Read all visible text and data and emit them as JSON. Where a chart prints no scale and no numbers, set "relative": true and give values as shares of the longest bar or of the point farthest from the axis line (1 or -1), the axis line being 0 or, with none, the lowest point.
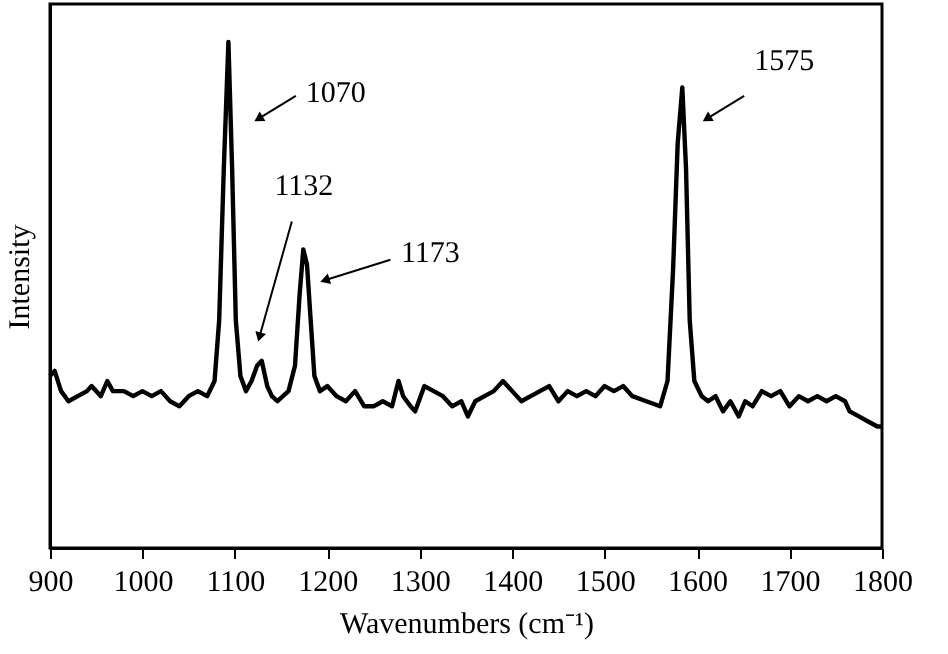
{
  "chart_data": {
    "type": "line",
    "relative": true,
    "xlabel": "Wavenumbers (cm⁻¹)",
    "ylabel": "Intensity",
    "xlim": [
      900,
      1800
    ],
    "xticks": [
      900,
      1000,
      1100,
      1200,
      1300,
      1400,
      1500,
      1600,
      1700,
      1800
    ],
    "grid": false,
    "marker": "none",
    "line_style": "solid",
    "x": [
      900,
      905,
      912,
      920,
      930,
      940,
      945,
      955,
      962,
      968,
      980,
      990,
      1000,
      1010,
      1020,
      1030,
      1040,
      1050,
      1060,
      1070,
      1078,
      1083,
      1088,
      1093,
      1097,
      1101,
      1106,
      1112,
      1118,
      1124,
      1129,
      1135,
      1140,
      1146,
      1152,
      1158,
      1165,
      1170,
      1174,
      1178,
      1182,
      1186,
      1192,
      1200,
      1210,
      1220,
      1230,
      1240,
      1250,
      1260,
      1270,
      1277,
      1282,
      1290,
      1295,
      1305,
      1315,
      1325,
      1335,
      1345,
      1352,
      1360,
      1370,
      1380,
      1390,
      1400,
      1410,
      1420,
      1430,
      1440,
      1450,
      1460,
      1470,
      1480,
      1490,
      1500,
      1510,
      1520,
      1530,
      1545,
      1560,
      1568,
      1574,
      1579,
      1584,
      1588,
      1592,
      1597,
      1605,
      1612,
      1620,
      1628,
      1636,
      1645,
      1652,
      1660,
      1670,
      1680,
      1690,
      1700,
      1710,
      1720,
      1730,
      1740,
      1750,
      1760,
      1765,
      1775,
      1785,
      1795,
      1800
    ],
    "series": [
      {
        "color": "#000000",
        "values": [
          0.34,
          0.35,
          0.31,
          0.29,
          0.3,
          0.31,
          0.32,
          0.3,
          0.33,
          0.31,
          0.31,
          0.3,
          0.31,
          0.3,
          0.31,
          0.29,
          0.28,
          0.3,
          0.31,
          0.3,
          0.33,
          0.45,
          0.75,
          1.0,
          0.75,
          0.45,
          0.34,
          0.31,
          0.33,
          0.36,
          0.37,
          0.32,
          0.3,
          0.29,
          0.3,
          0.31,
          0.36,
          0.5,
          0.59,
          0.56,
          0.45,
          0.34,
          0.31,
          0.32,
          0.3,
          0.29,
          0.31,
          0.28,
          0.28,
          0.29,
          0.28,
          0.33,
          0.3,
          0.28,
          0.27,
          0.32,
          0.31,
          0.3,
          0.28,
          0.29,
          0.26,
          0.29,
          0.3,
          0.31,
          0.33,
          0.31,
          0.29,
          0.3,
          0.31,
          0.32,
          0.29,
          0.31,
          0.3,
          0.31,
          0.3,
          0.32,
          0.31,
          0.32,
          0.3,
          0.29,
          0.28,
          0.33,
          0.55,
          0.8,
          0.91,
          0.75,
          0.45,
          0.33,
          0.3,
          0.29,
          0.3,
          0.27,
          0.29,
          0.26,
          0.29,
          0.28,
          0.31,
          0.3,
          0.31,
          0.28,
          0.3,
          0.29,
          0.3,
          0.29,
          0.3,
          0.29,
          0.27,
          0.26,
          0.25,
          0.24,
          0.24
        ]
      }
    ],
    "annotations": [
      {
        "text": "1070",
        "x": 1127,
        "y": 0.85
      },
      {
        "text": "1132",
        "x": 1127,
        "y": 0.42
      },
      {
        "text": "1173",
        "x": 1199,
        "y": 0.53
      },
      {
        "text": "1575",
        "x": 1612,
        "y": 0.85
      }
    ]
  }
}
